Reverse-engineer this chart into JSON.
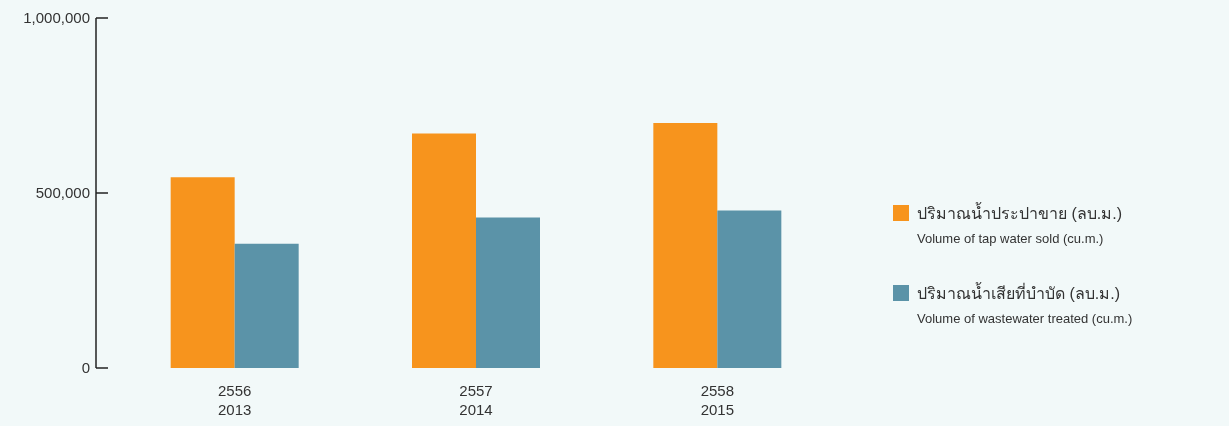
{
  "chart_data": {
    "type": "bar",
    "categories": [
      "2556\n2013",
      "2557\n2014",
      "2558\n2015"
    ],
    "series": [
      {
        "name": "ปริมาณน้ำประปาขาย (ลบ.ม.)\nVolume of tap water sold (cu.m.)",
        "color": "#f7941d",
        "values": [
          545000,
          670000,
          700000
        ]
      },
      {
        "name": "ปริมาณน้ำเสียที่บำบัด (ลบ.ม.)\nVolume of wastewater treated (cu.m.)",
        "color": "#5b93a8",
        "values": [
          355000,
          430000,
          450000
        ]
      }
    ],
    "ylim": [
      0,
      1000000
    ],
    "yticks": [
      {
        "value": 0,
        "label": "0"
      },
      {
        "value": 500000,
        "label": "500,000"
      },
      {
        "value": 1000000,
        "label": "1,000,000"
      }
    ],
    "legend": "right"
  }
}
